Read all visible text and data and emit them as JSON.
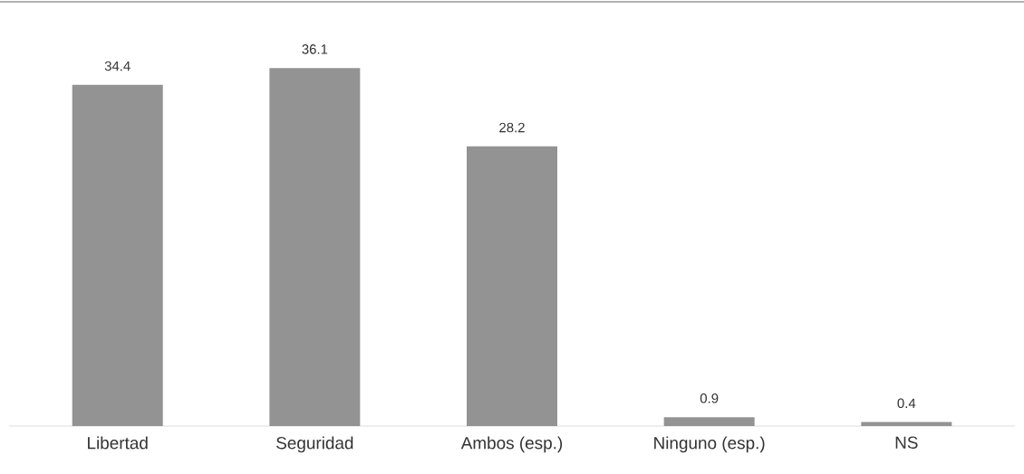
{
  "chart_data": {
    "type": "bar",
    "categories": [
      "Libertad",
      "Seguridad",
      "Ambos (esp.)",
      "Ninguno (esp.)",
      "NS"
    ],
    "values": [
      34.4,
      36.1,
      28.2,
      0.9,
      0.4
    ],
    "color": "#939393",
    "data_labels": true
  }
}
